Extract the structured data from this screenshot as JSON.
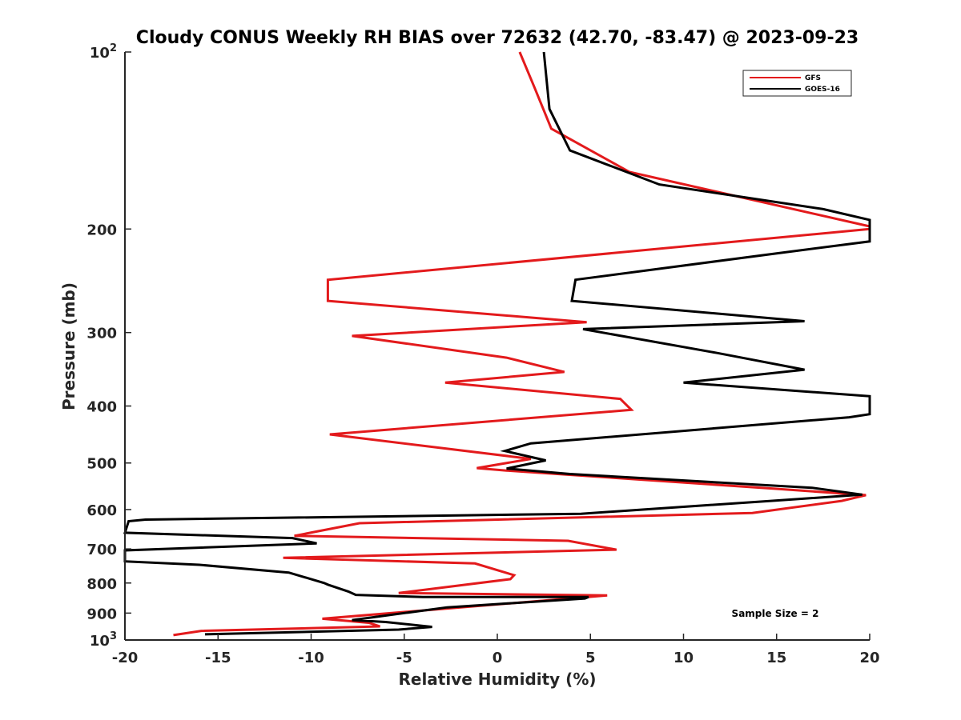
{
  "chart_data": {
    "type": "line",
    "title": "Cloudy CONUS Weekly RH BIAS over 72632 (42.70, -83.47) @ 2023-09-23",
    "xlabel": "Relative Humidity (%)",
    "ylabel": "Pressure (mb)",
    "xlim": [
      -20,
      20
    ],
    "ylim": [
      100,
      1000
    ],
    "y_scale": "log",
    "y_reversed": true,
    "grid": false,
    "legend_position": "top-right",
    "x_ticks": [
      "-20",
      "-15",
      "-10",
      "-5",
      "0",
      "5",
      "10",
      "15",
      "20"
    ],
    "y_ticks": [
      {
        "value": 100,
        "base": "10",
        "exp": "2"
      },
      {
        "value": 200,
        "label": "200"
      },
      {
        "value": 300,
        "label": "300"
      },
      {
        "value": 400,
        "label": "400"
      },
      {
        "value": 500,
        "label": "500"
      },
      {
        "value": 600,
        "label": "600"
      },
      {
        "value": 700,
        "label": "700"
      },
      {
        "value": 800,
        "label": "800"
      },
      {
        "value": 900,
        "label": "900"
      },
      {
        "value": 1000,
        "base": "10",
        "exp": "3"
      }
    ],
    "annotation": "Sample Size = 2",
    "series": [
      {
        "name": "GFS",
        "color": "#e31a1c",
        "points": [
          [
            1.2,
            100
          ],
          [
            2.0,
            115
          ],
          [
            2.9,
            135
          ],
          [
            7.1,
            160
          ],
          [
            20.0,
            198
          ],
          [
            20.0,
            200
          ],
          [
            -9.1,
            244
          ],
          [
            -9.1,
            265
          ],
          [
            4.8,
            288
          ],
          [
            -7.8,
            304
          ],
          [
            0.5,
            331
          ],
          [
            3.6,
            350
          ],
          [
            -2.8,
            365
          ],
          [
            6.6,
            389
          ],
          [
            7.2,
            406
          ],
          [
            -9.0,
            447
          ],
          [
            1.8,
            492
          ],
          [
            -1.1,
            510
          ],
          [
            0.5,
            515
          ],
          [
            14.9,
            553
          ],
          [
            19.8,
            567
          ],
          [
            18.5,
            580
          ],
          [
            13.7,
            608
          ],
          [
            -7.4,
            633
          ],
          [
            -10.9,
            665
          ],
          [
            3.8,
            678
          ],
          [
            6.4,
            702
          ],
          [
            -11.5,
            725
          ],
          [
            -1.2,
            741
          ],
          [
            0.9,
            776
          ],
          [
            0.7,
            788
          ],
          [
            -5.3,
            832
          ],
          [
            5.9,
            840
          ],
          [
            -9.4,
            920
          ],
          [
            -6.9,
            935
          ],
          [
            -6.3,
            948
          ],
          [
            -15.9,
            965
          ],
          [
            -17.4,
            981
          ]
        ]
      },
      {
        "name": "GOES-16",
        "color": "#000000",
        "points": [
          [
            2.5,
            100
          ],
          [
            2.8,
            125
          ],
          [
            3.9,
            147
          ],
          [
            8.7,
            168
          ],
          [
            17.5,
            185
          ],
          [
            20.0,
            193
          ],
          [
            20.0,
            210
          ],
          [
            15.0,
            220
          ],
          [
            4.2,
            244
          ],
          [
            4.0,
            265
          ],
          [
            16.5,
            287
          ],
          [
            4.6,
            296
          ],
          [
            11.8,
            325
          ],
          [
            16.5,
            347
          ],
          [
            10.0,
            365
          ],
          [
            20.0,
            385
          ],
          [
            20.0,
            413
          ],
          [
            18.9,
            418
          ],
          [
            1.8,
            463
          ],
          [
            0.4,
            477
          ],
          [
            2.6,
            495
          ],
          [
            0.5,
            511
          ],
          [
            3.9,
            522
          ],
          [
            16.9,
            551
          ],
          [
            19.6,
            566
          ],
          [
            14.7,
            580
          ],
          [
            4.5,
            610
          ],
          [
            -18.9,
            624
          ],
          [
            -19.8,
            628
          ],
          [
            -20.0,
            657
          ],
          [
            -11.0,
            671
          ],
          [
            -9.7,
            685
          ],
          [
            -20.0,
            704
          ],
          [
            -20.0,
            735
          ],
          [
            -16.0,
            745
          ],
          [
            -11.2,
            768
          ],
          [
            -9.3,
            800
          ],
          [
            -9.1,
            805
          ],
          [
            -8.0,
            827
          ],
          [
            -7.6,
            838
          ],
          [
            -4.0,
            845
          ],
          [
            4.9,
            845
          ],
          [
            4.7,
            850
          ],
          [
            -2.7,
            880
          ],
          [
            -7.8,
            925
          ],
          [
            -6.0,
            932
          ],
          [
            -3.5,
            950
          ],
          [
            -5.3,
            960
          ],
          [
            -15.7,
            978
          ]
        ]
      }
    ]
  }
}
